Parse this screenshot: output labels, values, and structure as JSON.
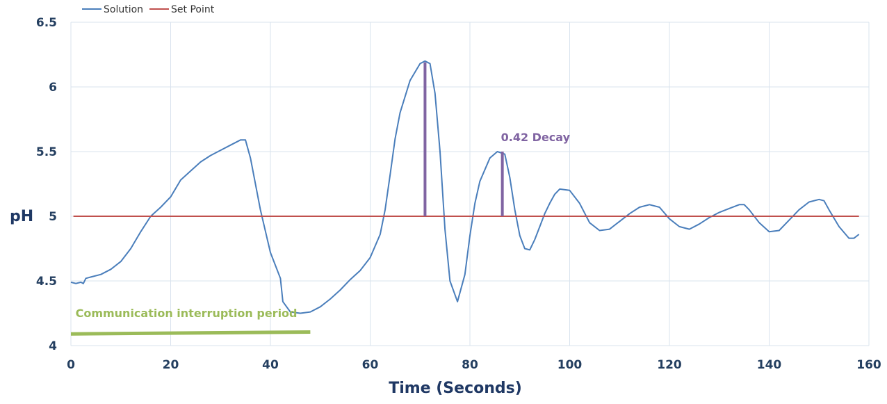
{
  "chart_data": {
    "type": "line",
    "title": "",
    "xlabel": "Time (Seconds)",
    "ylabel": "pH",
    "xlim": [
      0,
      160
    ],
    "ylim": [
      4,
      6.5
    ],
    "x_ticks": [
      0,
      20,
      40,
      60,
      80,
      100,
      120,
      140,
      160
    ],
    "y_ticks": [
      "4",
      "4.5",
      "5",
      "5.5",
      "6",
      "6.5"
    ],
    "grid": true,
    "legend_position": "top-left",
    "series": [
      {
        "name": "Solution",
        "color": "#4a7ebb",
        "points": [
          [
            0,
            4.49
          ],
          [
            1,
            4.48
          ],
          [
            2,
            4.49
          ],
          [
            2.5,
            4.48
          ],
          [
            3,
            4.52
          ],
          [
            4,
            4.53
          ],
          [
            6,
            4.55
          ],
          [
            8,
            4.59
          ],
          [
            10,
            4.65
          ],
          [
            12,
            4.75
          ],
          [
            14,
            4.88
          ],
          [
            16,
            5.0
          ],
          [
            18,
            5.07
          ],
          [
            20,
            5.15
          ],
          [
            22,
            5.28
          ],
          [
            24,
            5.35
          ],
          [
            26,
            5.42
          ],
          [
            28,
            5.47
          ],
          [
            30,
            5.51
          ],
          [
            32,
            5.55
          ],
          [
            34,
            5.59
          ],
          [
            35,
            5.59
          ],
          [
            36,
            5.45
          ],
          [
            38,
            5.05
          ],
          [
            40,
            4.72
          ],
          [
            42,
            4.52
          ],
          [
            42.5,
            4.34
          ],
          [
            44,
            4.26
          ],
          [
            46,
            4.25
          ],
          [
            48,
            4.26
          ],
          [
            50,
            4.3
          ],
          [
            52,
            4.36
          ],
          [
            54,
            4.43
          ],
          [
            56,
            4.51
          ],
          [
            58,
            4.58
          ],
          [
            60,
            4.68
          ],
          [
            62,
            4.86
          ],
          [
            63,
            5.05
          ],
          [
            64,
            5.32
          ],
          [
            65,
            5.6
          ],
          [
            66,
            5.8
          ],
          [
            68,
            6.05
          ],
          [
            70,
            6.18
          ],
          [
            71,
            6.2
          ],
          [
            72,
            6.18
          ],
          [
            73,
            5.95
          ],
          [
            74,
            5.5
          ],
          [
            75,
            4.9
          ],
          [
            76,
            4.5
          ],
          [
            77.5,
            4.34
          ],
          [
            79,
            4.55
          ],
          [
            80,
            4.85
          ],
          [
            81,
            5.1
          ],
          [
            82,
            5.27
          ],
          [
            84,
            5.45
          ],
          [
            85.5,
            5.5
          ],
          [
            87,
            5.48
          ],
          [
            88,
            5.3
          ],
          [
            89,
            5.05
          ],
          [
            90,
            4.85
          ],
          [
            91,
            4.75
          ],
          [
            92,
            4.74
          ],
          [
            93,
            4.82
          ],
          [
            94,
            4.92
          ],
          [
            95,
            5.02
          ],
          [
            96,
            5.1
          ],
          [
            97,
            5.17
          ],
          [
            98,
            5.21
          ],
          [
            100,
            5.2
          ],
          [
            102,
            5.1
          ],
          [
            104,
            4.95
          ],
          [
            106,
            4.89
          ],
          [
            108,
            4.9
          ],
          [
            110,
            4.96
          ],
          [
            112,
            5.02
          ],
          [
            114,
            5.07
          ],
          [
            116,
            5.09
          ],
          [
            118,
            5.07
          ],
          [
            120,
            4.98
          ],
          [
            122,
            4.92
          ],
          [
            124,
            4.9
          ],
          [
            126,
            4.94
          ],
          [
            128,
            4.99
          ],
          [
            130,
            5.03
          ],
          [
            132,
            5.06
          ],
          [
            134,
            5.09
          ],
          [
            135,
            5.09
          ],
          [
            136,
            5.05
          ],
          [
            138,
            4.95
          ],
          [
            140,
            4.88
          ],
          [
            142,
            4.89
          ],
          [
            144,
            4.97
          ],
          [
            146,
            5.05
          ],
          [
            148,
            5.11
          ],
          [
            150,
            5.13
          ],
          [
            151,
            5.12
          ],
          [
            152,
            5.05
          ],
          [
            154,
            4.92
          ],
          [
            156,
            4.83
          ],
          [
            157,
            4.83
          ],
          [
            158,
            4.86
          ]
        ]
      },
      {
        "name": "Set Point",
        "color": "#c0504d",
        "points": [
          [
            0.5,
            5.0
          ],
          [
            158,
            5.0
          ]
        ]
      }
    ],
    "annotations": [
      {
        "text": "0.42 Decay",
        "color": "#8064a2",
        "x": 86.5,
        "y": 5.58
      },
      {
        "text": "Communication interruption period",
        "color": "#9bbb59",
        "x": 0.5,
        "y": 4.22
      }
    ],
    "markers": [
      {
        "name": "peak-1-amplitude",
        "color": "#8064a2",
        "x": 71,
        "y0": 5.0,
        "y1": 6.19
      },
      {
        "name": "peak-2-amplitude",
        "color": "#8064a2",
        "x": 86.5,
        "y0": 5.0,
        "y1": 5.5
      }
    ],
    "bands": [
      {
        "name": "interruption-bar",
        "color": "#9bbb59",
        "x0": 0,
        "x1": 48,
        "y_start": 4.09,
        "y_end": 4.105
      }
    ]
  }
}
